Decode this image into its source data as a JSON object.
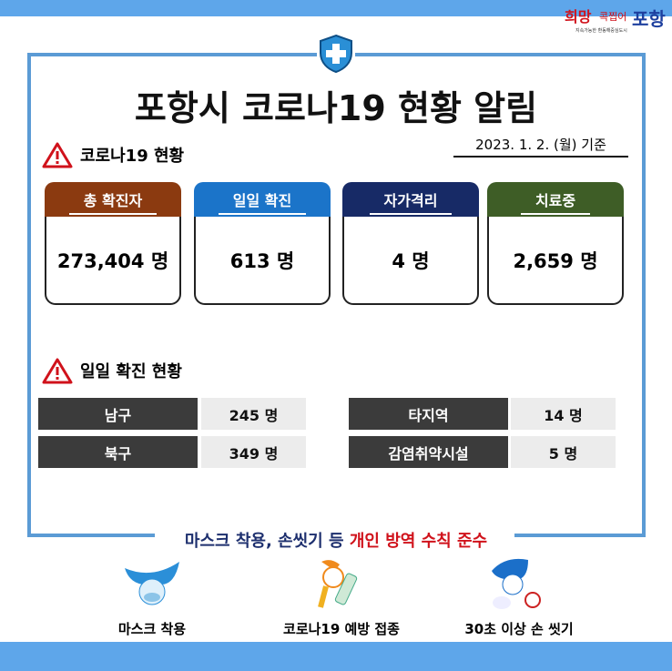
{
  "logo": {
    "text": "희망 콕찝어 포항",
    "tagline": "지속가능한 환동해중심도시"
  },
  "title": "포항시 코로나19 현황 알림",
  "date": "2023. 1. 2. (월) 기준",
  "section1": "코로나19 현황",
  "cards": [
    {
      "label": "총 확진자",
      "value": "273,404 명",
      "color": "#8b3a10"
    },
    {
      "label": "일일 확진",
      "value": "613 명",
      "color": "#1b74c9"
    },
    {
      "label": "자가격리",
      "value": "4 명",
      "color": "#172a66"
    },
    {
      "label": "치료중",
      "value": "2,659 명",
      "color": "#3e5d26"
    }
  ],
  "section2": "일일 확진 현황",
  "daily": [
    {
      "label": "남구",
      "value": "245 명"
    },
    {
      "label": "북구",
      "value": "349 명"
    },
    {
      "label": "타지역",
      "value": "14 명"
    },
    {
      "label": "감염취약시설",
      "value": "5 명"
    }
  ],
  "slogan": {
    "part1": "마스크 착용, 손씻기 등 ",
    "part2": "개인 방역 수칙 준수"
  },
  "tips": [
    {
      "label": "마스크 착용"
    },
    {
      "label": "코로나19 예방 접종"
    },
    {
      "label": "30초 이상 손 씻기"
    }
  ]
}
